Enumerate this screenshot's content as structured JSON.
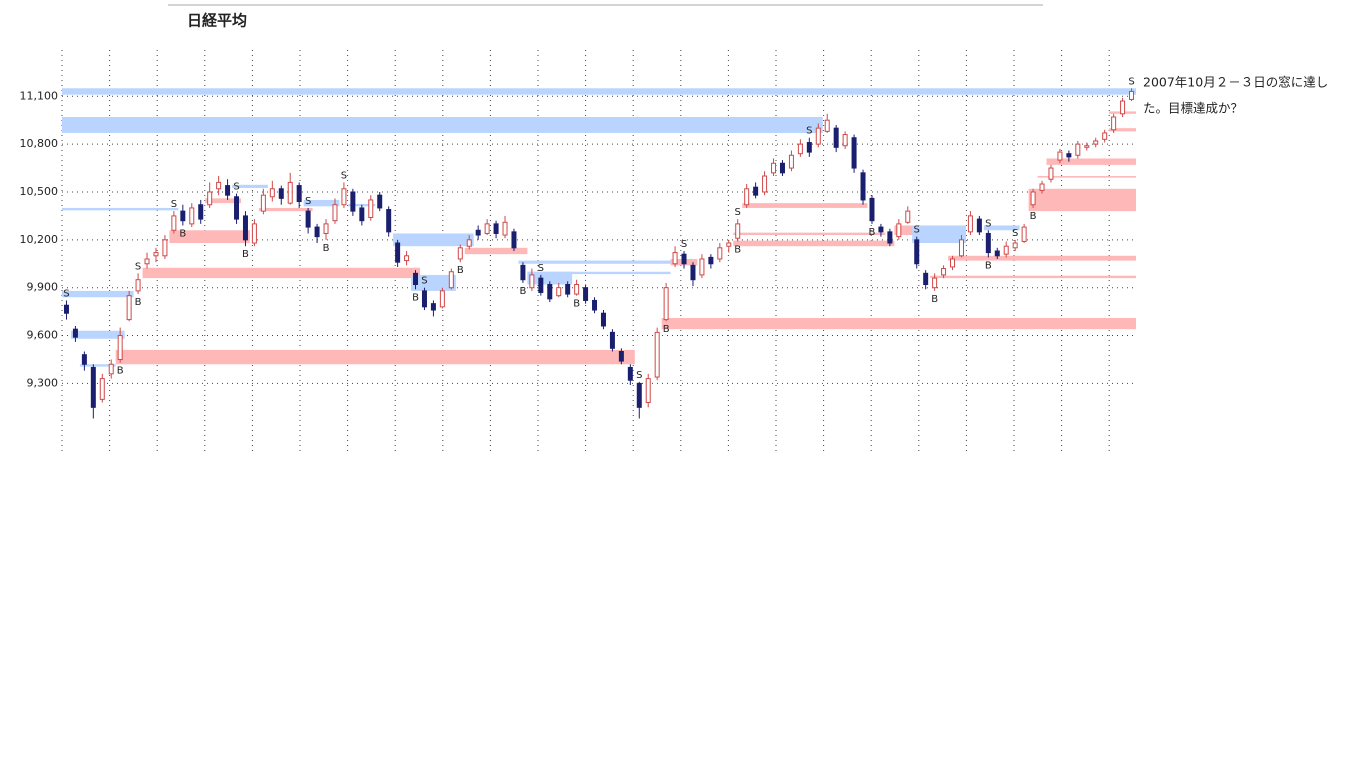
{
  "chart_data": {
    "type": "candlestick",
    "title": "日経平均",
    "annotation": [
      "2007年10月２－３日の窓に達し",
      "た。目標達成か？"
    ],
    "ylim": [
      8870,
      11390
    ],
    "yticks": [
      {
        "value": 9300,
        "label": "9,300"
      },
      {
        "value": 9600,
        "label": "9,600"
      },
      {
        "value": 9900,
        "label": "9,900"
      },
      {
        "value": 10200,
        "label": "10,200"
      },
      {
        "value": 10500,
        "label": "10,500"
      },
      {
        "value": 10800,
        "label": "10,800"
      },
      {
        "value": 11100,
        "label": "11,100"
      }
    ],
    "grid": true,
    "up_color": "#d04848",
    "down_color": "#1a1f6e",
    "ohlc": [
      [
        9790,
        9820,
        9700,
        9740
      ],
      [
        9640,
        9660,
        9560,
        9590
      ],
      [
        9480,
        9500,
        9380,
        9420
      ],
      [
        9400,
        9420,
        9080,
        9150
      ],
      [
        9200,
        9360,
        9180,
        9330
      ],
      [
        9360,
        9450,
        9330,
        9420
      ],
      [
        9450,
        9650,
        9430,
        9600
      ],
      [
        9700,
        9880,
        9690,
        9850
      ],
      [
        9880,
        9990,
        9860,
        9950
      ],
      [
        10050,
        10120,
        10020,
        10080
      ],
      [
        10100,
        10150,
        10060,
        10120
      ],
      [
        10100,
        10230,
        10080,
        10200
      ],
      [
        10260,
        10380,
        10240,
        10350
      ],
      [
        10380,
        10420,
        10290,
        10320
      ],
      [
        10300,
        10430,
        10280,
        10400
      ],
      [
        10420,
        10450,
        10300,
        10330
      ],
      [
        10420,
        10560,
        10400,
        10500
      ],
      [
        10520,
        10600,
        10480,
        10560
      ],
      [
        10540,
        10580,
        10450,
        10480
      ],
      [
        10470,
        10490,
        10300,
        10330
      ],
      [
        10350,
        10380,
        10160,
        10200
      ],
      [
        10180,
        10330,
        10160,
        10300
      ],
      [
        10380,
        10520,
        10360,
        10480
      ],
      [
        10470,
        10570,
        10440,
        10520
      ],
      [
        10520,
        10540,
        10420,
        10460
      ],
      [
        10430,
        10620,
        10420,
        10560
      ],
      [
        10540,
        10560,
        10400,
        10440
      ],
      [
        10380,
        10400,
        10240,
        10280
      ],
      [
        10280,
        10300,
        10180,
        10220
      ],
      [
        10240,
        10330,
        10200,
        10300
      ],
      [
        10320,
        10460,
        10300,
        10420
      ],
      [
        10420,
        10560,
        10400,
        10520
      ],
      [
        10500,
        10520,
        10350,
        10380
      ],
      [
        10400,
        10420,
        10290,
        10320
      ],
      [
        10340,
        10480,
        10320,
        10450
      ],
      [
        10480,
        10500,
        10380,
        10400
      ],
      [
        10390,
        10410,
        10220,
        10250
      ],
      [
        10180,
        10200,
        10030,
        10060
      ],
      [
        10070,
        10130,
        10040,
        10100
      ],
      [
        9990,
        10010,
        9890,
        9920
      ],
      [
        9880,
        9900,
        9760,
        9780
      ],
      [
        9800,
        9820,
        9720,
        9760
      ],
      [
        9780,
        9900,
        9770,
        9880
      ],
      [
        9900,
        10020,
        9890,
        10000
      ],
      [
        10080,
        10170,
        10060,
        10150
      ],
      [
        10160,
        10230,
        10140,
        10200
      ],
      [
        10260,
        10290,
        10200,
        10230
      ],
      [
        10240,
        10330,
        10230,
        10300
      ],
      [
        10300,
        10320,
        10210,
        10240
      ],
      [
        10230,
        10350,
        10210,
        10310
      ],
      [
        10250,
        10270,
        10130,
        10150
      ],
      [
        10040,
        10060,
        9930,
        9950
      ],
      [
        9900,
        10020,
        9880,
        9980
      ],
      [
        9960,
        9980,
        9850,
        9870
      ],
      [
        9920,
        9940,
        9810,
        9830
      ],
      [
        9850,
        9930,
        9840,
        9900
      ],
      [
        9920,
        9940,
        9840,
        9860
      ],
      [
        9860,
        9950,
        9850,
        9920
      ],
      [
        9900,
        9920,
        9800,
        9820
      ],
      [
        9820,
        9840,
        9740,
        9760
      ],
      [
        9740,
        9760,
        9640,
        9660
      ],
      [
        9620,
        9640,
        9500,
        9520
      ],
      [
        9500,
        9520,
        9420,
        9440
      ],
      [
        9400,
        9420,
        9290,
        9320
      ],
      [
        9300,
        9310,
        9080,
        9150
      ],
      [
        9180,
        9360,
        9150,
        9330
      ],
      [
        9340,
        9650,
        9320,
        9620
      ],
      [
        9700,
        9930,
        9690,
        9900
      ],
      [
        10050,
        10160,
        10030,
        10120
      ],
      [
        10110,
        10130,
        10020,
        10050
      ],
      [
        10040,
        10060,
        9910,
        9950
      ],
      [
        9980,
        10110,
        9960,
        10080
      ],
      [
        10090,
        10110,
        10020,
        10050
      ],
      [
        10080,
        10180,
        10060,
        10150
      ],
      [
        10160,
        10200,
        10120,
        10180
      ],
      [
        10210,
        10330,
        10190,
        10300
      ],
      [
        10420,
        10550,
        10400,
        10520
      ],
      [
        10530,
        10560,
        10460,
        10480
      ],
      [
        10500,
        10630,
        10480,
        10600
      ],
      [
        10620,
        10710,
        10600,
        10680
      ],
      [
        10680,
        10700,
        10600,
        10620
      ],
      [
        10650,
        10760,
        10630,
        10730
      ],
      [
        10740,
        10830,
        10720,
        10800
      ],
      [
        10810,
        10840,
        10720,
        10750
      ],
      [
        10800,
        10930,
        10780,
        10900
      ],
      [
        10880,
        10990,
        10870,
        10950
      ],
      [
        10900,
        10920,
        10750,
        10780
      ],
      [
        10790,
        10880,
        10770,
        10860
      ],
      [
        10840,
        10860,
        10620,
        10650
      ],
      [
        10620,
        10640,
        10420,
        10450
      ],
      [
        10460,
        10480,
        10300,
        10320
      ],
      [
        10280,
        10300,
        10220,
        10250
      ],
      [
        10250,
        10270,
        10160,
        10180
      ],
      [
        10220,
        10330,
        10200,
        10300
      ],
      [
        10310,
        10410,
        10300,
        10380
      ],
      [
        10200,
        10220,
        10020,
        10050
      ],
      [
        9990,
        10010,
        9890,
        9920
      ],
      [
        9900,
        9990,
        9880,
        9960
      ],
      [
        9980,
        10040,
        9960,
        10020
      ],
      [
        10030,
        10100,
        10010,
        10080
      ],
      [
        10100,
        10230,
        10090,
        10200
      ],
      [
        10250,
        10380,
        10230,
        10350
      ],
      [
        10330,
        10350,
        10230,
        10250
      ],
      [
        10240,
        10260,
        10090,
        10120
      ],
      [
        10130,
        10150,
        10080,
        10100
      ],
      [
        10110,
        10190,
        10090,
        10160
      ],
      [
        10150,
        10200,
        10130,
        10180
      ],
      [
        10190,
        10300,
        10180,
        10280
      ],
      [
        10420,
        10520,
        10400,
        10500
      ],
      [
        10510,
        10570,
        10490,
        10550
      ],
      [
        10580,
        10670,
        10560,
        10650
      ],
      [
        10700,
        10770,
        10680,
        10750
      ],
      [
        10740,
        10760,
        10690,
        10720
      ],
      [
        10730,
        10820,
        10710,
        10800
      ],
      [
        10780,
        10810,
        10760,
        10790
      ],
      [
        10800,
        10840,
        10780,
        10820
      ],
      [
        10830,
        10890,
        10810,
        10870
      ],
      [
        10890,
        10990,
        10870,
        10970
      ],
      [
        10990,
        11090,
        10970,
        11070
      ],
      [
        11080,
        11150,
        11070,
        11130
      ]
    ],
    "windows": [
      {
        "from": 0,
        "to": 119,
        "low": 11110,
        "high": 11150,
        "color": "#b8d4ff"
      },
      {
        "from": 0,
        "to": 84,
        "low": 10870,
        "high": 10970,
        "color": "#b8d4ff"
      },
      {
        "from": 0,
        "to": 12,
        "low": 10385,
        "high": 10400,
        "color": "#b8d4ff"
      },
      {
        "from": 0,
        "to": 7,
        "low": 9840,
        "high": 9880,
        "color": "#b8d4ff"
      },
      {
        "from": 1,
        "to": 6,
        "low": 9580,
        "high": 9630,
        "color": "#b8d4ff"
      },
      {
        "from": 2,
        "to": 5,
        "low": 9405,
        "high": 9420,
        "color": "#b8d4ff"
      },
      {
        "from": 6,
        "to": 63,
        "low": 9420,
        "high": 9510,
        "color": "#ffb8b8"
      },
      {
        "from": 9,
        "to": 39,
        "low": 9960,
        "high": 10025,
        "color": "#ffb8b8"
      },
      {
        "from": 12,
        "to": 20,
        "low": 10180,
        "high": 10260,
        "color": "#ffb8b8"
      },
      {
        "from": 16,
        "to": 19,
        "low": 10430,
        "high": 10460,
        "color": "#ffb8b8"
      },
      {
        "from": 19,
        "to": 22,
        "low": 10525,
        "high": 10545,
        "color": "#b8d4ff"
      },
      {
        "from": 22,
        "to": 27,
        "low": 10380,
        "high": 10400,
        "color": "#ffb8b8"
      },
      {
        "from": 27,
        "to": 30,
        "low": 10410,
        "high": 10450,
        "color": "#b8d4ff"
      },
      {
        "from": 32,
        "to": 34,
        "low": 10410,
        "high": 10425,
        "color": "#b8d4ff"
      },
      {
        "from": 37,
        "to": 45,
        "low": 10160,
        "high": 10240,
        "color": "#b8d4ff"
      },
      {
        "from": 39,
        "to": 43,
        "low": 9880,
        "high": 9980,
        "color": "#b8d4ff"
      },
      {
        "from": 45,
        "to": 51,
        "low": 10110,
        "high": 10150,
        "color": "#ffb8b8"
      },
      {
        "from": 51,
        "to": 68,
        "low": 10050,
        "high": 10070,
        "color": "#b8d4ff"
      },
      {
        "from": 52,
        "to": 67,
        "low": 9985,
        "high": 10000,
        "color": "#b8d4ff"
      },
      {
        "from": 52,
        "to": 56,
        "low": 9920,
        "high": 10000,
        "color": "#b8d4ff"
      },
      {
        "from": 67,
        "to": 119,
        "low": 9640,
        "high": 9710,
        "color": "#ffb8b8"
      },
      {
        "from": 68,
        "to": 70,
        "low": 10040,
        "high": 10080,
        "color": "#ffb8b8"
      },
      {
        "from": 75,
        "to": 92,
        "low": 10160,
        "high": 10195,
        "color": "#ffb8b8"
      },
      {
        "from": 75,
        "to": 91,
        "low": 10230,
        "high": 10245,
        "color": "#ffb8b8"
      },
      {
        "from": 76,
        "to": 89,
        "low": 10400,
        "high": 10430,
        "color": "#ffb8b8"
      },
      {
        "from": 93,
        "to": 95,
        "low": 10230,
        "high": 10290,
        "color": "#ffb8b8"
      },
      {
        "from": 95,
        "to": 100,
        "low": 10180,
        "high": 10290,
        "color": "#b8d4ff"
      },
      {
        "from": 97,
        "to": 119,
        "low": 9960,
        "high": 9975,
        "color": "#ffb8b8"
      },
      {
        "from": 99,
        "to": 119,
        "low": 10070,
        "high": 10100,
        "color": "#ffb8b8"
      },
      {
        "from": 103,
        "to": 106,
        "low": 10260,
        "high": 10290,
        "color": "#b8d4ff"
      },
      {
        "from": 108,
        "to": 119,
        "low": 10380,
        "high": 10520,
        "color": "#ffb8b8"
      },
      {
        "from": 109,
        "to": 119,
        "low": 10590,
        "high": 10600,
        "color": "#ffb8b8"
      },
      {
        "from": 110,
        "to": 119,
        "low": 10670,
        "high": 10710,
        "color": "#ffb8b8"
      },
      {
        "from": 117,
        "to": 119,
        "low": 10880,
        "high": 10900,
        "color": "#ffb8b8"
      },
      {
        "from": 117,
        "to": 119,
        "low": 10990,
        "high": 11005,
        "color": "#ffb8b8"
      }
    ],
    "signals": [
      {
        "index": 0,
        "label": "S",
        "position": "above"
      },
      {
        "index": 6,
        "label": "B",
        "position": "below"
      },
      {
        "index": 8,
        "label": "S",
        "position": "above"
      },
      {
        "index": 8,
        "label": "B",
        "position": "below"
      },
      {
        "index": 12,
        "label": "S",
        "position": "above"
      },
      {
        "index": 13,
        "label": "B",
        "position": "below"
      },
      {
        "index": 19,
        "label": "S",
        "position": "above"
      },
      {
        "index": 20,
        "label": "B",
        "position": "below"
      },
      {
        "index": 27,
        "label": "S",
        "position": "above"
      },
      {
        "index": 29,
        "label": "B",
        "position": "below"
      },
      {
        "index": 31,
        "label": "S",
        "position": "above"
      },
      {
        "index": 39,
        "label": "B",
        "position": "below"
      },
      {
        "index": 40,
        "label": "S",
        "position": "above"
      },
      {
        "index": 44,
        "label": "B",
        "position": "below"
      },
      {
        "index": 51,
        "label": "B",
        "position": "below"
      },
      {
        "index": 53,
        "label": "S",
        "position": "above"
      },
      {
        "index": 57,
        "label": "B",
        "position": "below"
      },
      {
        "index": 64,
        "label": "S",
        "position": "above"
      },
      {
        "index": 67,
        "label": "B",
        "position": "below"
      },
      {
        "index": 69,
        "label": "S",
        "position": "above"
      },
      {
        "index": 75,
        "label": "S",
        "position": "above"
      },
      {
        "index": 75,
        "label": "B",
        "position": "below"
      },
      {
        "index": 83,
        "label": "S",
        "position": "above"
      },
      {
        "index": 90,
        "label": "B",
        "position": "below"
      },
      {
        "index": 95,
        "label": "S",
        "position": "above"
      },
      {
        "index": 97,
        "label": "B",
        "position": "below"
      },
      {
        "index": 103,
        "label": "S",
        "position": "above"
      },
      {
        "index": 103,
        "label": "B",
        "position": "below"
      },
      {
        "index": 106,
        "label": "S",
        "position": "above"
      },
      {
        "index": 108,
        "label": "B",
        "position": "below"
      },
      {
        "index": 119,
        "label": "S",
        "position": "above"
      }
    ]
  }
}
